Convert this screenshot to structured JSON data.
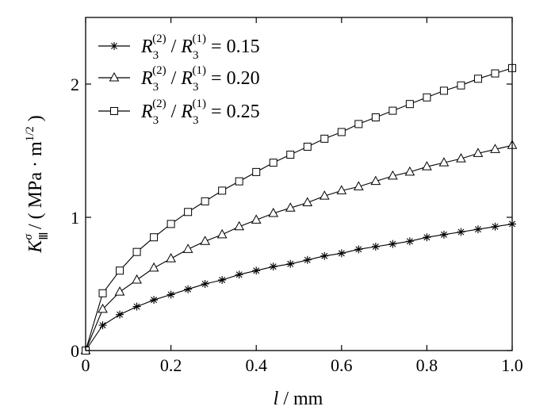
{
  "chart_data": {
    "type": "line",
    "xlabel": "l / mm",
    "ylabel": "K_III^σ / ( MPa·m^1/2 )",
    "xlim": [
      0,
      1.0
    ],
    "ylim": [
      0,
      2.5
    ],
    "xticks": [
      0,
      0.2,
      0.4,
      0.6,
      0.8,
      1.0
    ],
    "xtick_labels": [
      "0",
      "0.2",
      "0.4",
      "0.6",
      "0.8",
      "1.0"
    ],
    "yticks": [
      0,
      1,
      2
    ],
    "ytick_labels": [
      "0",
      "1",
      "2"
    ],
    "grid": false,
    "legend_position": "top-left",
    "x": [
      0,
      0.04,
      0.08,
      0.12,
      0.16,
      0.2,
      0.24,
      0.28,
      0.32,
      0.36,
      0.4,
      0.44,
      0.48,
      0.52,
      0.56,
      0.6,
      0.64,
      0.68,
      0.72,
      0.76,
      0.8,
      0.84,
      0.88,
      0.92,
      0.96,
      1.0
    ],
    "series": [
      {
        "name": "R3(2) / R3(1) = 0.15",
        "legend_value": "0.15",
        "marker": "asterisk",
        "values": [
          0,
          0.19,
          0.27,
          0.33,
          0.38,
          0.42,
          0.46,
          0.5,
          0.53,
          0.57,
          0.6,
          0.63,
          0.65,
          0.68,
          0.71,
          0.73,
          0.76,
          0.78,
          0.8,
          0.82,
          0.85,
          0.87,
          0.89,
          0.91,
          0.93,
          0.95
        ]
      },
      {
        "name": "R3(2) / R3(1) = 0.20",
        "legend_value": "0.20",
        "marker": "triangle",
        "values": [
          0,
          0.31,
          0.44,
          0.53,
          0.62,
          0.69,
          0.76,
          0.82,
          0.87,
          0.93,
          0.98,
          1.03,
          1.07,
          1.11,
          1.16,
          1.2,
          1.23,
          1.27,
          1.31,
          1.34,
          1.38,
          1.41,
          1.44,
          1.48,
          1.51,
          1.54
        ]
      },
      {
        "name": "R3(2) / R3(1) = 0.25",
        "legend_value": "0.25",
        "marker": "square",
        "values": [
          0,
          0.43,
          0.6,
          0.74,
          0.85,
          0.95,
          1.04,
          1.12,
          1.2,
          1.27,
          1.34,
          1.41,
          1.47,
          1.53,
          1.59,
          1.64,
          1.7,
          1.75,
          1.8,
          1.85,
          1.9,
          1.95,
          1.99,
          2.04,
          2.08,
          2.12
        ]
      }
    ]
  }
}
